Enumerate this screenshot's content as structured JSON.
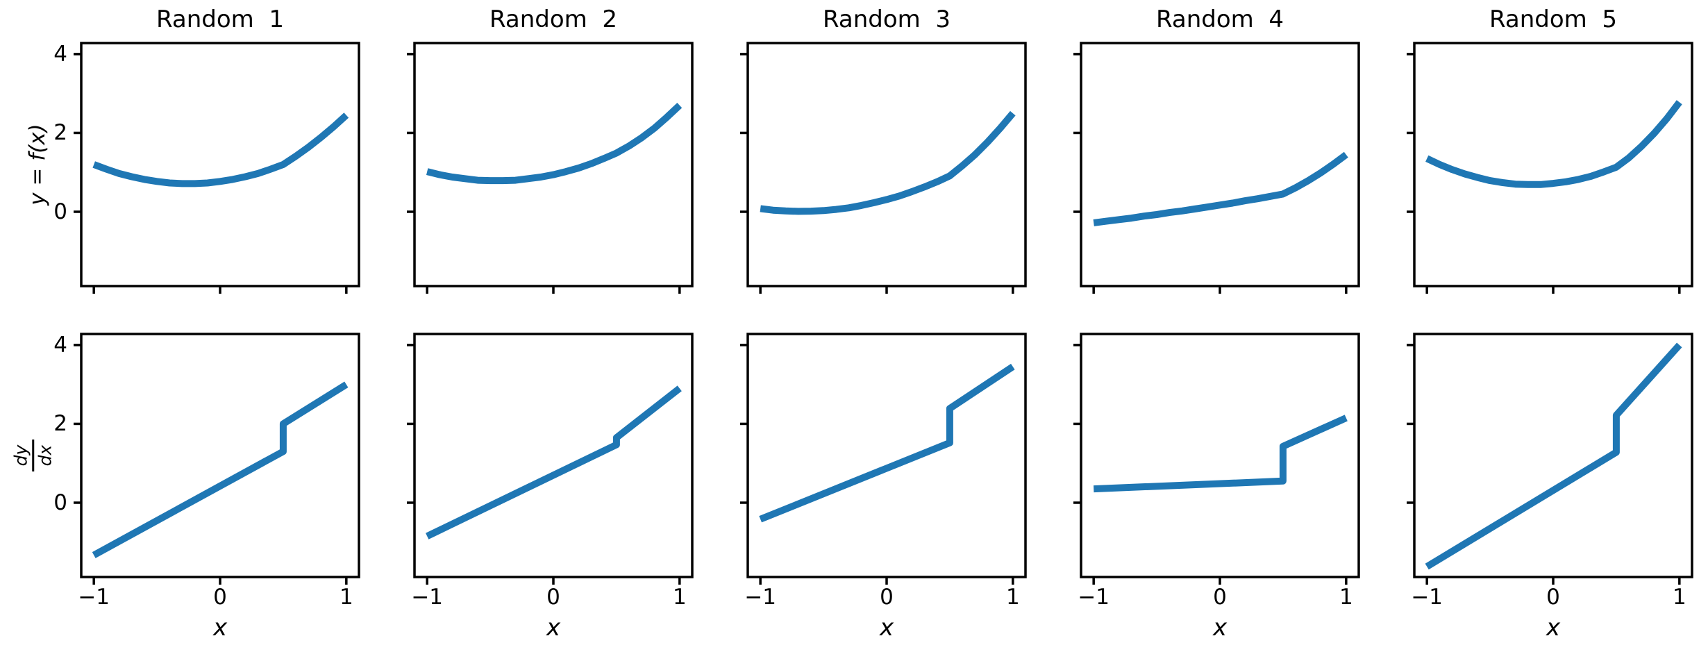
{
  "figure": {
    "background": "#ffffff",
    "text_color": "#000000"
  },
  "chart_data": {
    "type": "line",
    "grid": "2 rows x 5 columns, shared x and y axes, no gridlines, no legend",
    "line_color": "#1f77b4",
    "xlim": [
      -1.1,
      1.1
    ],
    "ylim": [
      -1.885,
      4.28
    ],
    "xticks": [
      -1,
      0,
      1
    ],
    "xtick_labels": [
      "−1",
      "0",
      "1"
    ],
    "yticks": [
      4,
      2,
      0
    ],
    "ytick_labels": [
      "4",
      "2",
      "0"
    ],
    "xlabel": "x",
    "ylabel_top": "y = f(x)",
    "ylabel_bottom_numerator": "dy",
    "ylabel_bottom_denominator": "dx",
    "f_x": [
      -1.0,
      -0.9,
      -0.8,
      -0.7,
      -0.6,
      -0.5,
      -0.4,
      -0.3,
      -0.2,
      -0.1,
      0.0,
      0.1,
      0.2,
      0.3,
      0.4,
      0.5,
      0.6,
      0.7,
      0.8,
      0.9,
      1.0
    ],
    "columns": [
      {
        "title": "Random  1",
        "f_y": [
          1.2,
          1.08,
          0.97,
          0.89,
          0.82,
          0.77,
          0.73,
          0.715,
          0.715,
          0.73,
          0.77,
          0.82,
          0.89,
          0.97,
          1.08,
          1.2,
          1.41,
          1.64,
          1.89,
          2.16,
          2.45
        ],
        "dydx": [
          [
            -1,
            -1.33
          ],
          [
            0.5,
            1.3
          ],
          [
            0.5,
            2.0
          ],
          [
            1,
            3.0
          ]
        ]
      },
      {
        "title": "Random  2",
        "f_y": [
          1.02,
          0.94,
          0.88,
          0.84,
          0.8,
          0.79,
          0.79,
          0.8,
          0.84,
          0.88,
          0.94,
          1.02,
          1.11,
          1.22,
          1.35,
          1.49,
          1.67,
          1.88,
          2.12,
          2.4,
          2.7
        ],
        "dydx": [
          [
            -1,
            -0.85
          ],
          [
            0.5,
            1.47
          ],
          [
            0.5,
            1.65
          ],
          [
            1,
            2.9
          ]
        ]
      },
      {
        "title": "Random  3",
        "f_y": [
          0.08,
          0.04,
          0.02,
          0.01,
          0.015,
          0.03,
          0.06,
          0.1,
          0.16,
          0.23,
          0.31,
          0.4,
          0.51,
          0.63,
          0.76,
          0.91,
          1.17,
          1.45,
          1.77,
          2.12,
          2.5
        ],
        "dydx": [
          [
            -1,
            -0.42
          ],
          [
            0.5,
            1.52
          ],
          [
            0.5,
            2.39
          ],
          [
            1,
            3.45
          ]
        ]
      },
      {
        "title": "Random  4",
        "f_y": [
          -0.28,
          -0.24,
          -0.2,
          -0.16,
          -0.11,
          -0.07,
          -0.02,
          0.02,
          0.07,
          0.12,
          0.17,
          0.22,
          0.28,
          0.33,
          0.39,
          0.45,
          0.61,
          0.79,
          0.99,
          1.21,
          1.45
        ],
        "dydx": [
          [
            -1,
            0.35
          ],
          [
            0.5,
            0.55
          ],
          [
            0.5,
            1.43
          ],
          [
            1,
            2.15
          ]
        ]
      },
      {
        "title": "Random  5",
        "f_y": [
          1.35,
          1.2,
          1.07,
          0.96,
          0.87,
          0.79,
          0.74,
          0.7,
          0.69,
          0.69,
          0.72,
          0.76,
          0.82,
          0.9,
          1.01,
          1.13,
          1.37,
          1.66,
          1.99,
          2.36,
          2.78
        ],
        "dydx": [
          [
            -1,
            -1.62
          ],
          [
            0.5,
            1.28
          ],
          [
            0.5,
            2.22
          ],
          [
            1,
            4.0
          ]
        ]
      }
    ]
  }
}
